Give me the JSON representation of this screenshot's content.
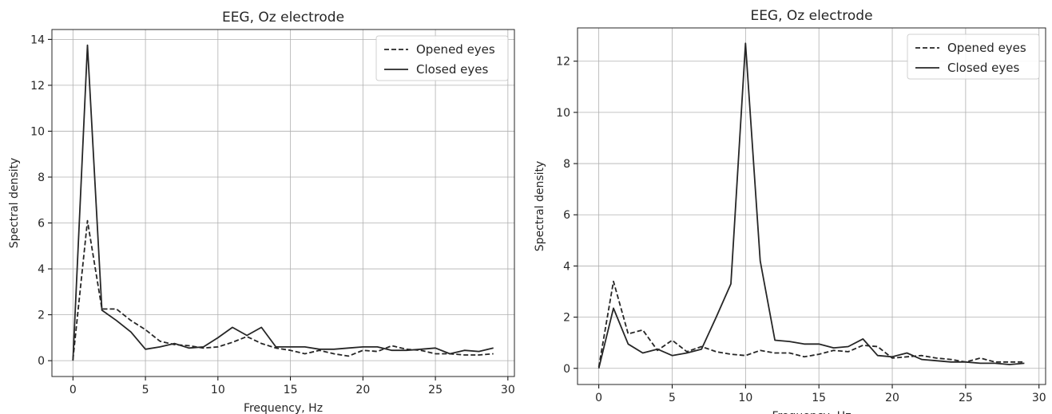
{
  "chart_data": [
    {
      "type": "line",
      "title": "EEG, Oz electrode",
      "xlabel": "Frequency, Hz",
      "ylabel": "Spectral density",
      "xlim": [
        -1.45,
        30.45
      ],
      "ylim": [
        -0.69,
        14.43
      ],
      "xticks": [
        0,
        5,
        10,
        15,
        20,
        25,
        30
      ],
      "yticks": [
        0,
        2,
        4,
        6,
        8,
        10,
        12,
        14
      ],
      "grid": true,
      "legend_position": "top-right",
      "x": [
        0,
        1,
        2,
        3,
        4,
        5,
        6,
        7,
        8,
        9,
        10,
        11,
        12,
        13,
        14,
        15,
        16,
        17,
        18,
        19,
        20,
        21,
        22,
        23,
        24,
        25,
        26,
        27,
        28,
        29
      ],
      "series": [
        {
          "name": "Opened eyes",
          "style": "dashed",
          "color": "#262626",
          "values": [
            0.05,
            6.1,
            2.25,
            2.25,
            1.75,
            1.35,
            0.85,
            0.7,
            0.65,
            0.55,
            0.6,
            0.8,
            1.05,
            0.75,
            0.55,
            0.45,
            0.3,
            0.45,
            0.3,
            0.2,
            0.45,
            0.4,
            0.65,
            0.5,
            0.45,
            0.3,
            0.3,
            0.25,
            0.25,
            0.3
          ]
        },
        {
          "name": "Closed eyes",
          "style": "solid",
          "color": "#262626",
          "values": [
            0.0,
            13.75,
            2.2,
            1.75,
            1.25,
            0.5,
            0.6,
            0.75,
            0.55,
            0.6,
            1.0,
            1.45,
            1.1,
            1.45,
            0.6,
            0.6,
            0.6,
            0.5,
            0.5,
            0.55,
            0.6,
            0.6,
            0.45,
            0.45,
            0.5,
            0.55,
            0.3,
            0.45,
            0.4,
            0.55
          ]
        }
      ]
    },
    {
      "type": "line",
      "title": "EEG, Oz electrode",
      "xlabel": "Frequency, Hz",
      "ylabel": "Spectral density",
      "xlim": [
        -1.45,
        30.45
      ],
      "ylim": [
        -0.63,
        13.3
      ],
      "xticks": [
        0,
        5,
        10,
        15,
        20,
        25,
        30
      ],
      "yticks": [
        0,
        2,
        4,
        6,
        8,
        10,
        12
      ],
      "grid": true,
      "legend_position": "top-right",
      "x": [
        0,
        1,
        2,
        3,
        4,
        5,
        6,
        7,
        8,
        9,
        10,
        11,
        12,
        13,
        14,
        15,
        16,
        17,
        18,
        19,
        20,
        21,
        22,
        23,
        24,
        25,
        26,
        27,
        28,
        29
      ],
      "series": [
        {
          "name": "Opened eyes",
          "style": "dashed",
          "color": "#262626",
          "values": [
            0.05,
            3.4,
            1.35,
            1.5,
            0.7,
            1.1,
            0.65,
            0.85,
            0.65,
            0.55,
            0.5,
            0.7,
            0.6,
            0.6,
            0.45,
            0.55,
            0.7,
            0.65,
            0.9,
            0.85,
            0.4,
            0.45,
            0.5,
            0.4,
            0.35,
            0.25,
            0.4,
            0.25,
            0.25,
            0.25
          ]
        },
        {
          "name": "Closed eyes",
          "style": "solid",
          "color": "#262626",
          "values": [
            0.0,
            2.35,
            0.95,
            0.6,
            0.75,
            0.5,
            0.6,
            0.75,
            2.0,
            3.3,
            12.7,
            4.2,
            1.1,
            1.05,
            0.95,
            0.95,
            0.8,
            0.85,
            1.15,
            0.5,
            0.45,
            0.6,
            0.35,
            0.3,
            0.25,
            0.25,
            0.2,
            0.2,
            0.15,
            0.2
          ]
        }
      ]
    }
  ]
}
